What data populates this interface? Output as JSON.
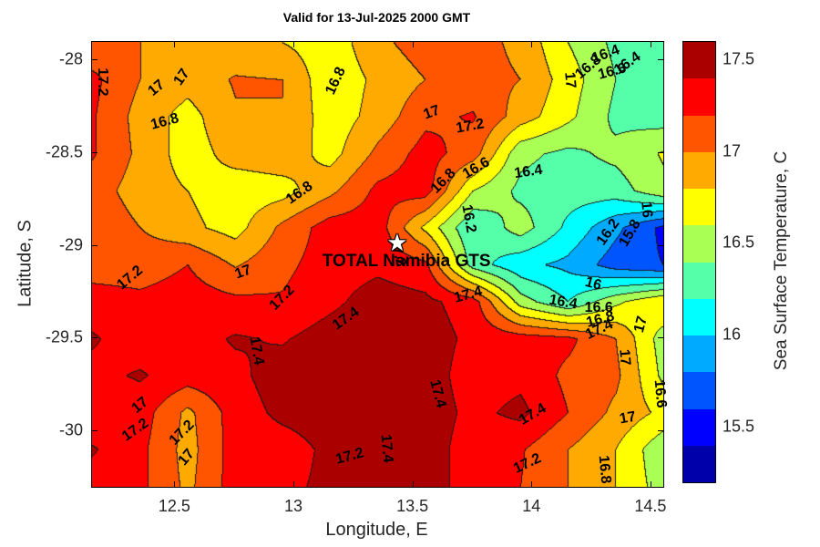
{
  "title": "Valid for 13-Jul-2025 2000 GMT",
  "axes": {
    "x_label": "Longitude, E",
    "y_label": "Latitude, S",
    "x_ticks": [
      {
        "value": 12.5,
        "label": "12.5"
      },
      {
        "value": 13,
        "label": "13"
      },
      {
        "value": 13.5,
        "label": "13.5"
      },
      {
        "value": 14,
        "label": "14"
      },
      {
        "value": 14.5,
        "label": "14.5"
      }
    ],
    "y_ticks": [
      {
        "value": -28,
        "label": "-28"
      },
      {
        "value": -28.5,
        "label": "-28.5"
      },
      {
        "value": -29,
        "label": "-29"
      },
      {
        "value": -29.5,
        "label": "-29.5"
      },
      {
        "value": -30,
        "label": "-30"
      }
    ]
  },
  "colorbar": {
    "label": "Sea Surface Temperature, C",
    "value_min": 15.2,
    "value_max": 17.6,
    "ticks": [
      {
        "value": 17.5,
        "label": "17.5"
      },
      {
        "value": 17,
        "label": "17"
      },
      {
        "value": 16.5,
        "label": "16.5"
      },
      {
        "value": 16,
        "label": "16"
      },
      {
        "value": 15.5,
        "label": "15.5"
      }
    ]
  },
  "station": {
    "name": "TOTAL Namibia GTS",
    "marker": "star-icon",
    "lon": 13.436,
    "lat": -28.99,
    "label_lon": 13.475,
    "label_lat": -29.09
  },
  "chart_data": {
    "type": "filled_contour",
    "title": "Valid for 13-Jul-2025 2000 GMT",
    "xlabel": "Longitude, E",
    "ylabel": "Latitude, S",
    "lon_min": 12.15,
    "lon_max": 14.55,
    "lat_min": -30.3,
    "lat_max": -27.9,
    "value_min": 15.2,
    "value_max": 17.6,
    "contour_interval": 0.2,
    "palette": [
      "#0000aa",
      "#0000ff",
      "#0055ff",
      "#00aaff",
      "#00ffff",
      "#55ffaa",
      "#aaff55",
      "#ffff00",
      "#ffaa00",
      "#ff5500",
      "#ff0000",
      "#aa0000"
    ],
    "line_color": "#1a1a1a",
    "grid_lon": [
      12.15,
      12.35,
      12.55,
      12.75,
      12.95,
      13.15,
      13.35,
      13.55,
      13.75,
      13.95,
      14.15,
      14.35,
      14.55
    ],
    "grid_lat": [
      -27.9,
      -28.1,
      -28.3,
      -28.5,
      -28.7,
      -28.9,
      -29.1,
      -29.3,
      -29.5,
      -29.7,
      -29.9,
      -30.1,
      -30.3
    ],
    "sst_grid": [
      [
        17.05,
        17.0,
        16.9,
        16.85,
        16.8,
        16.68,
        16.95,
        17.1,
        17.08,
        16.95,
        16.6,
        16.35,
        16.22
      ],
      [
        17.25,
        17.0,
        16.88,
        17.02,
        17.0,
        16.65,
        16.85,
        17.0,
        17.08,
        17.0,
        16.7,
        16.4,
        16.25
      ],
      [
        17.22,
        16.92,
        16.72,
        16.98,
        17.0,
        16.68,
        16.88,
        17.15,
        17.22,
        16.9,
        16.65,
        16.35,
        16.3
      ],
      [
        17.22,
        16.95,
        16.7,
        16.88,
        16.92,
        16.72,
        17.05,
        17.28,
        17.1,
        16.45,
        16.35,
        16.45,
        16.62
      ],
      [
        17.1,
        16.9,
        16.8,
        16.68,
        16.72,
        16.95,
        17.25,
        17.3,
        16.6,
        16.35,
        16.3,
        16.3,
        16.55
      ],
      [
        17.15,
        17.0,
        16.85,
        16.72,
        17.05,
        17.3,
        17.3,
        16.75,
        16.2,
        16.5,
        16.15,
        15.85,
        15.55
      ],
      [
        17.1,
        17.1,
        17.2,
        16.98,
        17.15,
        17.3,
        17.35,
        17.25,
        16.3,
        16.05,
        15.95,
        15.7,
        15.6
      ],
      [
        17.3,
        17.25,
        17.3,
        17.25,
        17.22,
        17.35,
        17.5,
        17.45,
        17.3,
        16.5,
        16.2,
        16.55,
        16.8
      ],
      [
        17.42,
        17.3,
        17.32,
        17.42,
        17.38,
        17.5,
        17.58,
        17.5,
        17.35,
        17.3,
        17.25,
        17.0,
        16.5
      ],
      [
        17.35,
        17.42,
        17.3,
        17.35,
        17.5,
        17.55,
        17.58,
        17.5,
        17.3,
        17.35,
        17.15,
        17.05,
        16.55
      ],
      [
        17.25,
        17.3,
        16.95,
        17.3,
        17.45,
        17.5,
        17.55,
        17.5,
        17.35,
        17.45,
        17.2,
        16.95,
        16.75
      ],
      [
        17.42,
        17.25,
        16.92,
        17.3,
        17.3,
        17.45,
        17.55,
        17.5,
        17.3,
        17.22,
        17.0,
        16.8,
        16.45
      ],
      [
        17.3,
        17.25,
        16.95,
        17.3,
        17.35,
        17.45,
        17.55,
        17.5,
        17.3,
        17.2,
        17.0,
        16.8,
        16.5
      ]
    ],
    "contour_labels": [
      {
        "t": "17.2",
        "lon": 12.196,
        "lat": -28.121,
        "r": 90
      },
      {
        "t": "17",
        "lon": 12.426,
        "lat": -28.156,
        "r": -40
      },
      {
        "t": "17",
        "lon": 12.533,
        "lat": -28.097,
        "r": -55
      },
      {
        "t": "16.8",
        "lon": 12.46,
        "lat": -28.338,
        "r": -15
      },
      {
        "t": "16.8",
        "lon": 13.18,
        "lat": -28.117,
        "r": -65
      },
      {
        "t": "16.8",
        "lon": 13.027,
        "lat": -28.722,
        "r": -35
      },
      {
        "t": "17",
        "lon": 13.581,
        "lat": -28.289,
        "r": -20
      },
      {
        "t": "17.2",
        "lon": 13.742,
        "lat": -28.363,
        "r": -10
      },
      {
        "t": "17",
        "lon": 14.159,
        "lat": -28.112,
        "r": 85
      },
      {
        "t": "16.8",
        "lon": 14.24,
        "lat": -28.043,
        "r": -40
      },
      {
        "t": "16.6",
        "lon": 14.339,
        "lat": -28.067,
        "r": -15
      },
      {
        "t": "16.4",
        "lon": 14.312,
        "lat": -27.974,
        "r": -20
      },
      {
        "t": "16.4",
        "lon": 14.404,
        "lat": -28.023,
        "r": -35
      },
      {
        "t": "16.4",
        "lon": 13.987,
        "lat": -28.609,
        "r": -8
      },
      {
        "t": "16.6",
        "lon": 13.769,
        "lat": -28.589,
        "r": -30
      },
      {
        "t": "16.8",
        "lon": 13.631,
        "lat": -28.658,
        "r": -45
      },
      {
        "t": "16.2",
        "lon": 13.735,
        "lat": -28.86,
        "r": 80
      },
      {
        "t": "16.2",
        "lon": 14.324,
        "lat": -28.933,
        "r": -55
      },
      {
        "t": "15.8",
        "lon": 14.416,
        "lat": -28.938,
        "r": -60
      },
      {
        "t": "16",
        "lon": 14.481,
        "lat": -28.81,
        "r": 85
      },
      {
        "t": "16",
        "lon": 14.26,
        "lat": -29.213,
        "r": 15
      },
      {
        "t": "16.4",
        "lon": 14.133,
        "lat": -29.312,
        "r": 10
      },
      {
        "t": "16.6",
        "lon": 14.283,
        "lat": -29.341,
        "r": 0
      },
      {
        "t": "16.8",
        "lon": 14.29,
        "lat": -29.405,
        "r": -15
      },
      {
        "t": "17.4",
        "lon": 14.287,
        "lat": -29.459,
        "r": -25
      },
      {
        "t": "17",
        "lon": 14.463,
        "lat": -29.43,
        "r": -75
      },
      {
        "t": "17.2",
        "lon": 12.315,
        "lat": -29.179,
        "r": -40
      },
      {
        "t": "17",
        "lon": 12.789,
        "lat": -29.149,
        "r": -20
      },
      {
        "t": "17.2",
        "lon": 12.954,
        "lat": -29.287,
        "r": -45
      },
      {
        "t": "17.4",
        "lon": 12.843,
        "lat": -29.572,
        "r": 80
      },
      {
        "t": "17.2",
        "lon": 13.436,
        "lat": -29.041,
        "r": 75
      },
      {
        "t": "17.4",
        "lon": 13.735,
        "lat": -29.273,
        "r": -15
      },
      {
        "t": "17.4",
        "lon": 13.222,
        "lat": -29.4,
        "r": -35
      },
      {
        "t": "17.4",
        "lon": 13.604,
        "lat": -29.804,
        "r": 75
      },
      {
        "t": "17.4",
        "lon": 13.39,
        "lat": -30.099,
        "r": 85
      },
      {
        "t": "17.2",
        "lon": 13.237,
        "lat": -30.143,
        "r": -15
      },
      {
        "t": "17.4",
        "lon": 14.006,
        "lat": -29.917,
        "r": -30
      },
      {
        "t": "17.2",
        "lon": 13.983,
        "lat": -30.183,
        "r": -25
      },
      {
        "t": "17",
        "lon": 12.357,
        "lat": -29.868,
        "r": -40
      },
      {
        "t": "17.2",
        "lon": 12.338,
        "lat": -30.001,
        "r": -35
      },
      {
        "t": "17.2",
        "lon": 12.533,
        "lat": -30.015,
        "r": -45
      },
      {
        "t": "17",
        "lon": 12.552,
        "lat": -30.148,
        "r": -50
      },
      {
        "t": "17",
        "lon": 14.39,
        "lat": -29.607,
        "r": 85
      },
      {
        "t": "16.6",
        "lon": 14.54,
        "lat": -29.804,
        "r": 85
      },
      {
        "t": "17",
        "lon": 14.406,
        "lat": -29.937,
        "r": -10
      },
      {
        "t": "16.8",
        "lon": 14.306,
        "lat": -30.212,
        "r": 85
      }
    ]
  }
}
